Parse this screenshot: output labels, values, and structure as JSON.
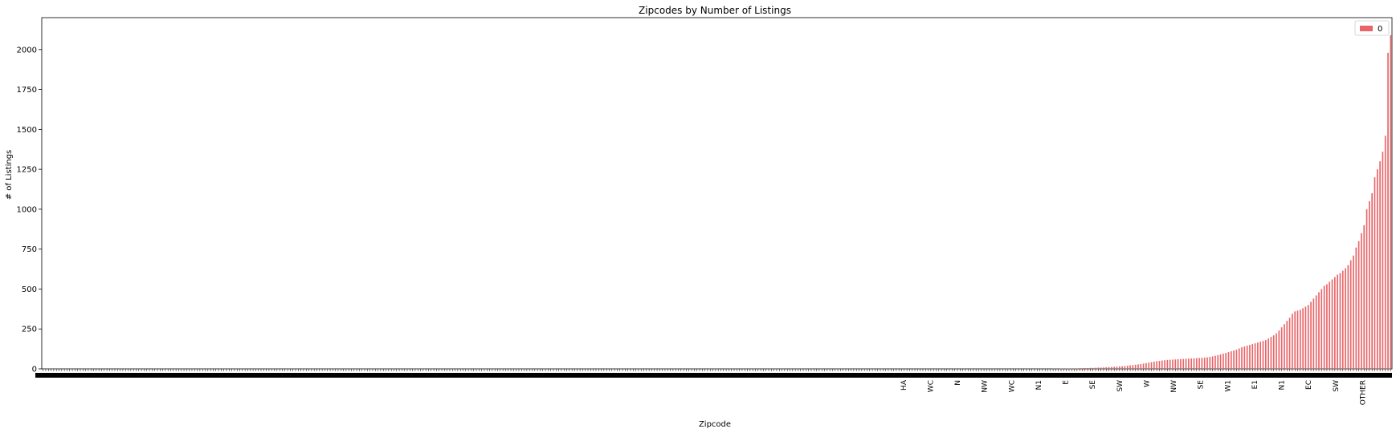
{
  "chart_data": {
    "type": "bar",
    "title": "Zipcodes by Number of Listings",
    "xlabel": "Zipcode",
    "ylabel": "# of Listings",
    "ylim": [
      0,
      2200
    ],
    "yticks": [
      0,
      250,
      500,
      750,
      1000,
      1250,
      1500,
      1750,
      2000
    ],
    "grid": false,
    "legend": {
      "position": "top-right"
    },
    "series": [
      {
        "name": "0",
        "color": "#e86468"
      }
    ],
    "categories_visible": [
      "HA",
      "WC",
      "N",
      "NW",
      "WC",
      "N1",
      "E",
      "SE",
      "SW",
      "W",
      "NW",
      "SE",
      "W1",
      "E1",
      "N1",
      "EC",
      "SW",
      "OTHER"
    ],
    "category_count": 540,
    "value_profile": {
      "zero_count": 380,
      "small_ramp": [
        1,
        1,
        1,
        2,
        2,
        2,
        2,
        3,
        3,
        3,
        4,
        4,
        5,
        5,
        6,
        6,
        7,
        8,
        8,
        9,
        10,
        11,
        12,
        13,
        14,
        15,
        16,
        18,
        20,
        22,
        24,
        26,
        28,
        30,
        33,
        36,
        39,
        42,
        45,
        48,
        50,
        52,
        54,
        56,
        57,
        58,
        59,
        60,
        61,
        62,
        63,
        64,
        65,
        66,
        67,
        68,
        69,
        70,
        72,
        75,
        78,
        82,
        86,
        90,
        95,
        100,
        105,
        110,
        115,
        120,
        128,
        135,
        140,
        145,
        150,
        155,
        160,
        165,
        170,
        175,
        180,
        190,
        200,
        210,
        222,
        240,
        260,
        280,
        300,
        320,
        345,
        360,
        365,
        370,
        380,
        390,
        400,
        420,
        440,
        460,
        480,
        500,
        520,
        530,
        545,
        560,
        575,
        590,
        600,
        615,
        630,
        650,
        680,
        710,
        760,
        800,
        850,
        900,
        1000,
        1050,
        1100,
        1200,
        1250,
        1300,
        1360,
        1460,
        1980,
        2090
      ]
    }
  }
}
